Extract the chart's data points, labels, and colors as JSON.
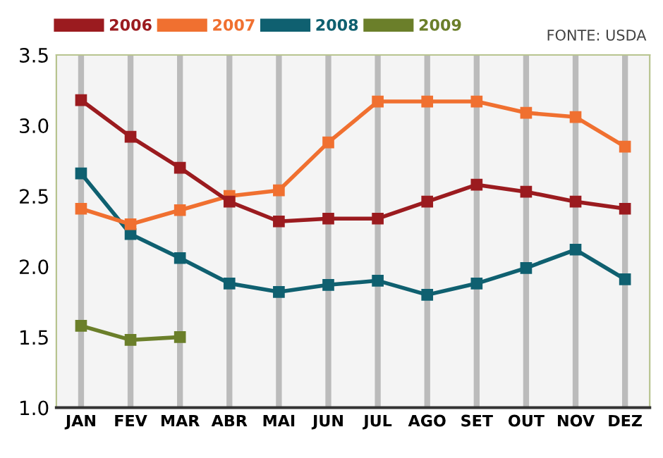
{
  "chart_data": {
    "type": "line",
    "categories": [
      "JAN",
      "FEV",
      "MAR",
      "ABR",
      "MAI",
      "JUN",
      "JUL",
      "AGO",
      "SET",
      "OUT",
      "NOV",
      "DEZ"
    ],
    "series": [
      {
        "name": "2006",
        "color": "#9b1b1f",
        "values": [
          3.18,
          2.92,
          2.7,
          2.46,
          2.32,
          2.34,
          2.34,
          2.46,
          2.58,
          2.53,
          2.46,
          2.41
        ]
      },
      {
        "name": "2007",
        "color": "#f07030",
        "values": [
          2.41,
          2.3,
          2.4,
          2.5,
          2.54,
          2.88,
          3.17,
          3.17,
          3.17,
          3.09,
          3.06,
          2.85
        ]
      },
      {
        "name": "2008",
        "color": "#0f6070",
        "values": [
          2.66,
          2.23,
          2.06,
          1.88,
          1.82,
          1.87,
          1.9,
          1.8,
          1.88,
          1.99,
          2.12,
          1.91
        ]
      },
      {
        "name": "2009",
        "color": "#6b7f2a",
        "values": [
          1.58,
          1.48,
          1.5,
          null,
          null,
          null,
          null,
          null,
          null,
          null,
          null,
          null
        ]
      }
    ],
    "ylim": [
      1.0,
      3.5
    ],
    "yticks": [
      {
        "value": 1.0,
        "label": "1.0"
      },
      {
        "value": 1.5,
        "label": "1.5"
      },
      {
        "value": 2.0,
        "label": "2.0"
      },
      {
        "value": 2.5,
        "label": "2.5"
      },
      {
        "value": 3.0,
        "label": "3.0"
      },
      {
        "value": 3.5,
        "label": "3.5"
      }
    ],
    "annotations": [
      "FONTE: USDA"
    ],
    "grid": "x",
    "legend": "top left",
    "marker": "square",
    "line_style": "solid"
  }
}
